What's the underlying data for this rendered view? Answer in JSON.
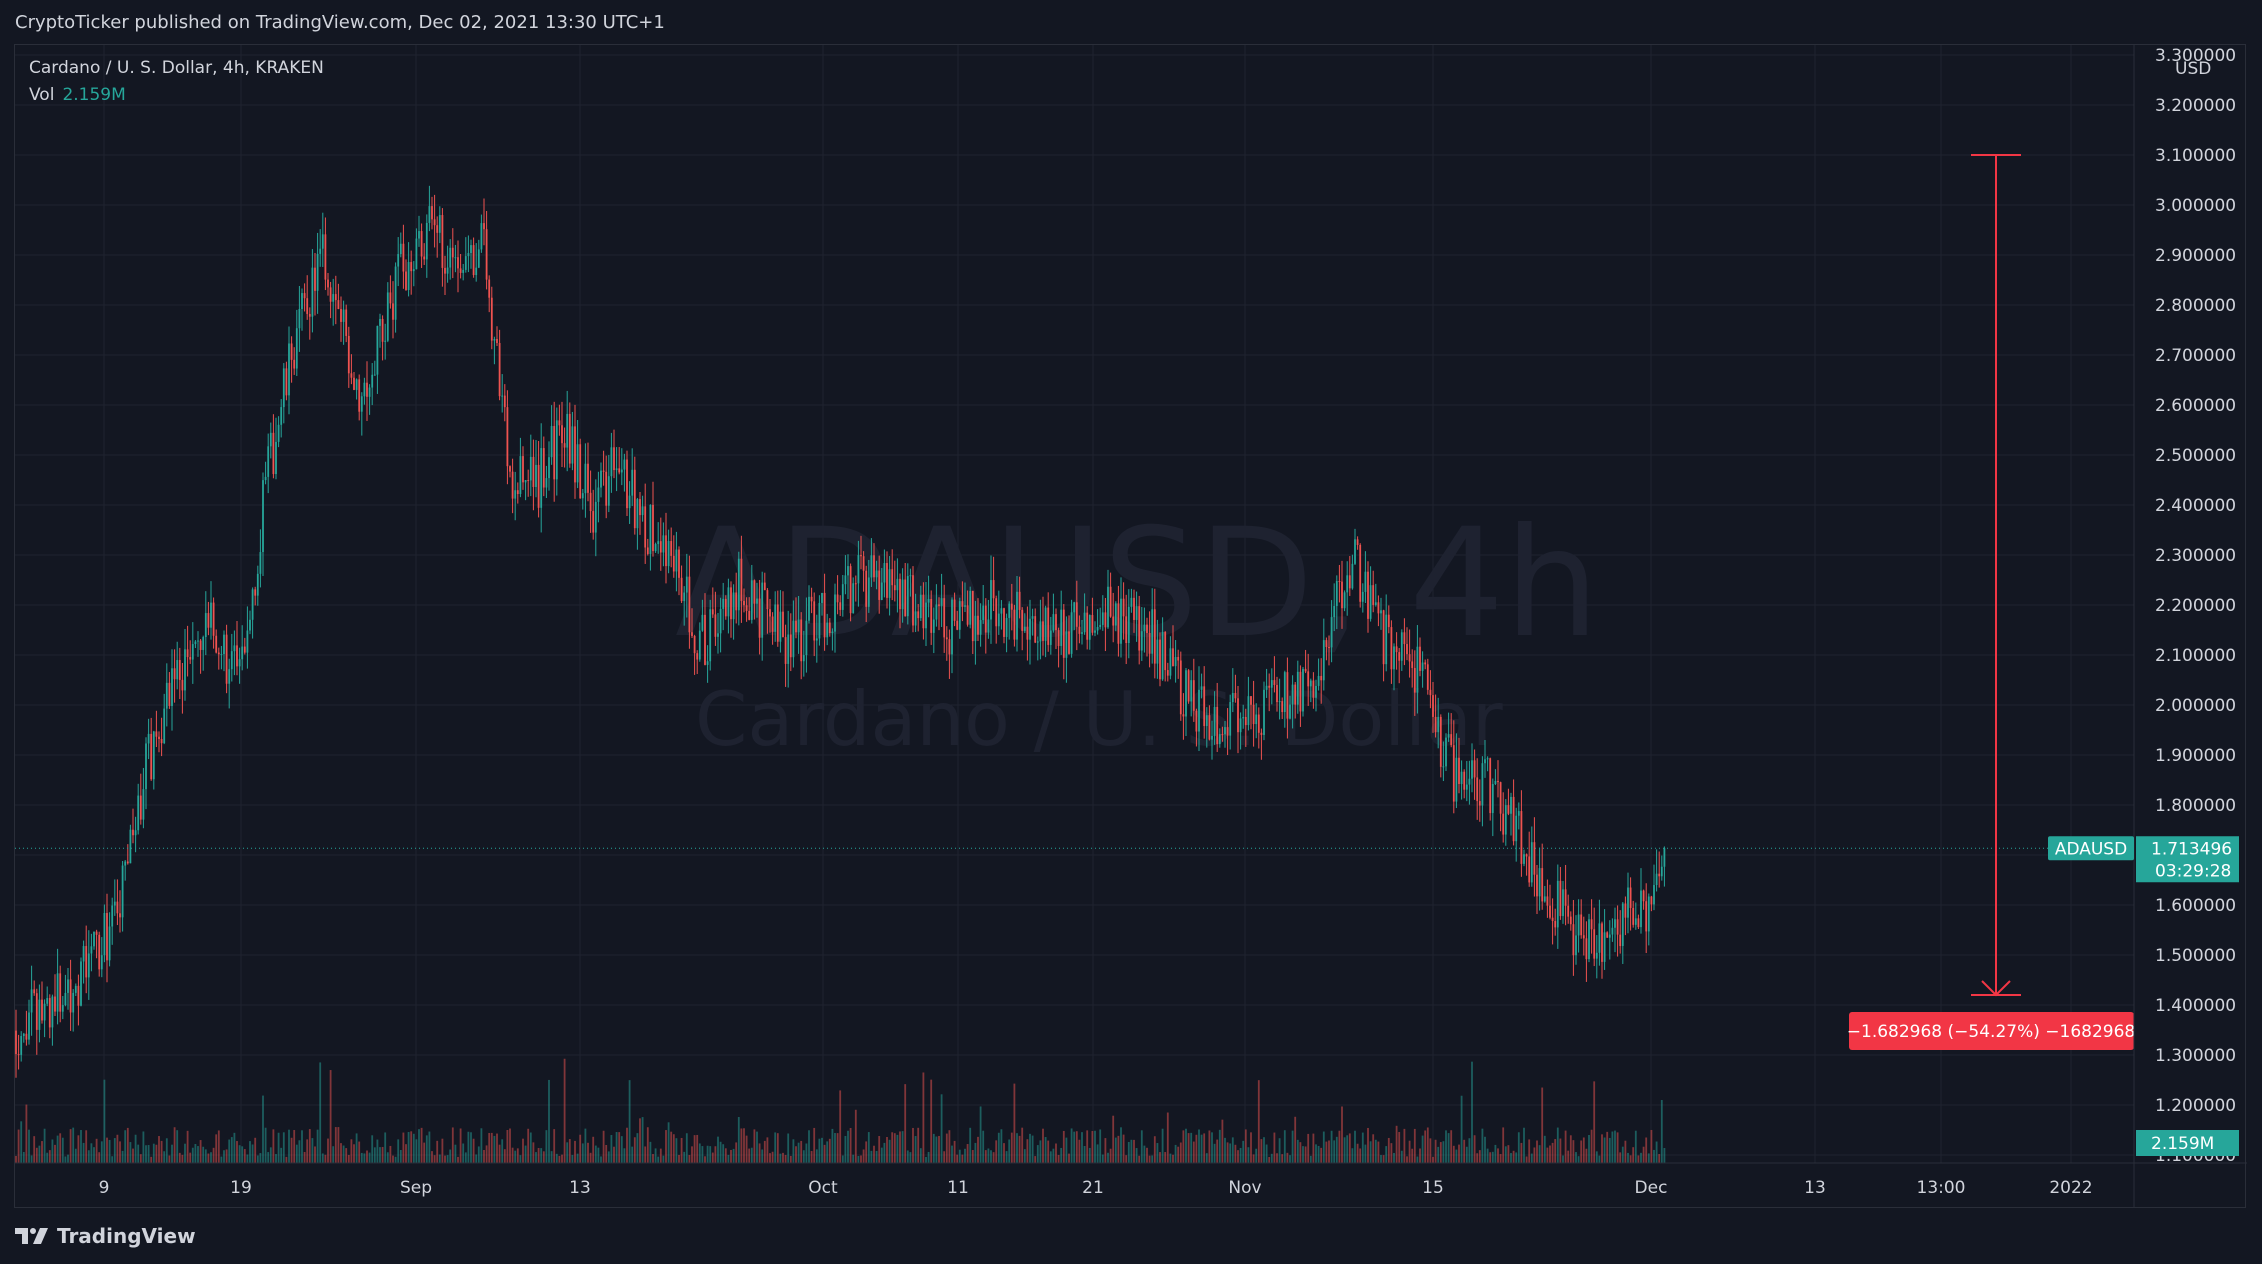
{
  "header": {
    "published_line": "CryptoTicker published on TradingView.com, Dec 02, 2021 13:30 UTC+1"
  },
  "legend": {
    "symbol_line": "Cardano / U. S. Dollar, 4h, KRAKEN",
    "vol_label": "Vol",
    "vol_value": "2.159M"
  },
  "watermark": {
    "ticker": "ADAUSD, 4h",
    "name": "Cardano / U. S. Dollar"
  },
  "price_axis": {
    "currency": "USD",
    "ticks": [
      "3.300000",
      "3.200000",
      "3.100000",
      "3.000000",
      "2.900000",
      "2.800000",
      "2.700000",
      "2.600000",
      "2.500000",
      "2.400000",
      "2.300000",
      "2.200000",
      "2.100000",
      "2.000000",
      "1.900000",
      "1.800000",
      "1.700000",
      "1.600000",
      "1.500000",
      "1.400000",
      "1.300000",
      "1.200000",
      "1.100000"
    ]
  },
  "time_axis": {
    "ticks": [
      "9",
      "19",
      "Sep",
      "13",
      "Oct",
      "11",
      "21",
      "Nov",
      "15",
      "Dec",
      "13",
      "13:00",
      "2022"
    ]
  },
  "last_price": {
    "symbol": "ADAUSD",
    "price": "1.713496",
    "countdown": "03:29:28",
    "volume": "2.159M"
  },
  "measure": {
    "label": "−1.682968 (−54.27%) −1682968"
  },
  "footer": {
    "brand": "TradingView"
  },
  "colors": {
    "up": "#26a69a",
    "down": "#ef5350",
    "measure": "#f23645",
    "background": "#131722",
    "grid": "#1f2330"
  },
  "chart_data": {
    "type": "candlestick",
    "symbol": "ADAUSD",
    "interval": "4h",
    "exchange": "KRAKEN",
    "ylim": [
      1.1,
      3.3
    ],
    "close_path": [
      [
        "Aug 01",
        1.32
      ],
      [
        "Aug 04",
        1.38
      ],
      [
        "Aug 07",
        1.45
      ],
      [
        "Aug 10",
        1.58
      ],
      [
        "Aug 12",
        1.86
      ],
      [
        "Aug 14",
        2.05
      ],
      [
        "Aug 17",
        2.15
      ],
      [
        "Aug 19",
        2.05
      ],
      [
        "Aug 21",
        2.45
      ],
      [
        "Aug 23",
        2.72
      ],
      [
        "Aug 25",
        2.9
      ],
      [
        "Aug 28",
        2.62
      ],
      [
        "Aug 31",
        2.88
      ],
      [
        "Sep 02",
        2.95
      ],
      [
        "Sep 04",
        2.9
      ],
      [
        "Sep 06",
        2.92
      ],
      [
        "Sep 08",
        2.45
      ],
      [
        "Sep 10",
        2.45
      ],
      [
        "Sep 12",
        2.55
      ],
      [
        "Sep 14",
        2.4
      ],
      [
        "Sep 16",
        2.48
      ],
      [
        "Sep 18",
        2.35
      ],
      [
        "Sep 20",
        2.3
      ],
      [
        "Sep 22",
        2.12
      ],
      [
        "Sep 25",
        2.25
      ],
      [
        "Sep 28",
        2.12
      ],
      [
        "Oct 01",
        2.18
      ],
      [
        "Oct 04",
        2.25
      ],
      [
        "Oct 07",
        2.23
      ],
      [
        "Oct 10",
        2.15
      ],
      [
        "Oct 13",
        2.2
      ],
      [
        "Oct 16",
        2.18
      ],
      [
        "Oct 19",
        2.15
      ],
      [
        "Oct 22",
        2.18
      ],
      [
        "Oct 25",
        2.15
      ],
      [
        "Oct 28",
        2.0
      ],
      [
        "Oct 31",
        1.97
      ],
      [
        "Nov 03",
        2.0
      ],
      [
        "Nov 06",
        2.02
      ],
      [
        "Nov 09",
        2.3
      ],
      [
        "Nov 11",
        2.15
      ],
      [
        "Nov 14",
        2.05
      ],
      [
        "Nov 17",
        1.82
      ],
      [
        "Nov 19",
        1.85
      ],
      [
        "Nov 22",
        1.7
      ],
      [
        "Nov 25",
        1.55
      ],
      [
        "Nov 27",
        1.5
      ],
      [
        "Nov 29",
        1.58
      ],
      [
        "Dec 01",
        1.58
      ],
      [
        "Dec 02",
        1.713496
      ]
    ],
    "key_points": {
      "high": 3.1,
      "low": 1.42,
      "last": 1.713496
    },
    "measure": {
      "from": 3.1,
      "to": 1.42,
      "change": -1.682968,
      "change_pct": -54.27
    },
    "volume": {
      "last": "2.159M"
    }
  }
}
